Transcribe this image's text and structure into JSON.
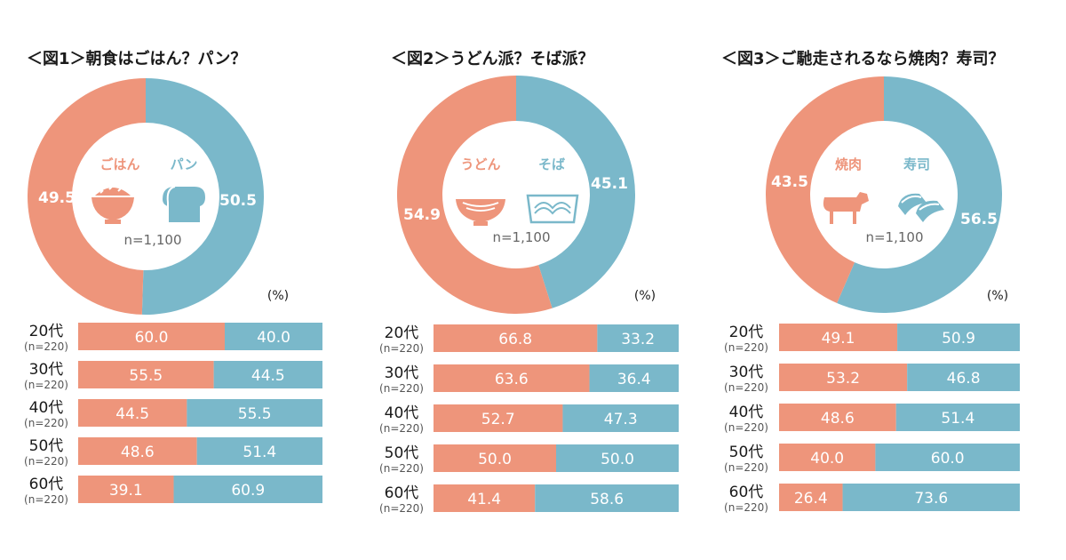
{
  "colors": {
    "left": "#ee957b",
    "right": "#7ab8ca",
    "label": "#ee957b",
    "n_text": "#666666"
  },
  "charts": [
    {
      "title": "＜図1＞朝食はごはん？パン？",
      "left_label": "ごはん",
      "right_label": "パン",
      "left_icon": "rice-bowl-icon",
      "right_icon": "bread-icon",
      "n": "n=1,100",
      "unit": "(%)",
      "left_value_label": "49.5",
      "right_value_label": "50.5"
    },
    {
      "title": "＜図2＞うどん派？そば派？",
      "left_label": "うどん",
      "right_label": "そば",
      "left_icon": "udon-bowl-icon",
      "right_icon": "soba-tray-icon",
      "n": "n=1,100",
      "unit": "(%)",
      "left_value_label": "54.9",
      "right_value_label": "45.1"
    },
    {
      "title": "＜図3＞ご馳走されるなら焼肉？寿司？",
      "left_label": "焼肉",
      "right_label": "寿司",
      "left_icon": "cow-icon",
      "right_icon": "sushi-icon",
      "n": "n=1,100",
      "unit": "(%)",
      "left_value_label": "43.5",
      "right_value_label": "56.5"
    }
  ],
  "chart_data": [
    {
      "type": "pie",
      "title": "＜図1＞朝食はごはん？パン？",
      "categories": [
        "ごはん",
        "パン"
      ],
      "values": [
        49.5,
        50.5
      ]
    },
    {
      "type": "bar",
      "stacked": true,
      "orientation": "horizontal",
      "categories": [
        "20代",
        "30代",
        "40代",
        "50代",
        "60代"
      ],
      "category_notes": [
        "(n=220)",
        "(n=220)",
        "(n=220)",
        "(n=220)",
        "(n=220)"
      ],
      "series": [
        {
          "name": "ごはん",
          "values": [
            60.0,
            55.5,
            44.5,
            48.6,
            39.1
          ],
          "labels": [
            "60.0",
            "55.5",
            "44.5",
            "48.6",
            "39.1"
          ]
        },
        {
          "name": "パン",
          "values": [
            40.0,
            44.5,
            55.5,
            51.4,
            60.9
          ],
          "labels": [
            "40.0",
            "44.5",
            "55.5",
            "51.4",
            "60.9"
          ]
        }
      ]
    },
    {
      "type": "pie",
      "title": "＜図2＞うどん派？そば派？",
      "categories": [
        "うどん",
        "そば"
      ],
      "values": [
        54.9,
        45.1
      ]
    },
    {
      "type": "bar",
      "stacked": true,
      "orientation": "horizontal",
      "categories": [
        "20代",
        "30代",
        "40代",
        "50代",
        "60代"
      ],
      "category_notes": [
        "(n=220)",
        "(n=220)",
        "(n=220)",
        "(n=220)",
        "(n=220)"
      ],
      "series": [
        {
          "name": "うどん",
          "values": [
            66.8,
            63.6,
            52.7,
            50.0,
            41.4
          ],
          "labels": [
            "66.8",
            "63.6",
            "52.7",
            "50.0",
            "41.4"
          ]
        },
        {
          "name": "そば",
          "values": [
            33.2,
            36.4,
            47.3,
            50.0,
            58.6
          ],
          "labels": [
            "33.2",
            "36.4",
            "47.3",
            "50.0",
            "58.6"
          ]
        }
      ]
    },
    {
      "type": "pie",
      "title": "＜図3＞ご馳走されるなら焼肉？寿司？",
      "categories": [
        "焼肉",
        "寿司"
      ],
      "values": [
        43.5,
        56.5
      ]
    },
    {
      "type": "bar",
      "stacked": true,
      "orientation": "horizontal",
      "categories": [
        "20代",
        "30代",
        "40代",
        "50代",
        "60代"
      ],
      "category_notes": [
        "(n=220)",
        "(n=220)",
        "(n=220)",
        "(n=220)",
        "(n=220)"
      ],
      "series": [
        {
          "name": "焼肉",
          "values": [
            49.1,
            53.2,
            48.6,
            40.0,
            26.4
          ],
          "labels": [
            "49.1",
            "53.2",
            "48.6",
            "40.0",
            "26.4"
          ]
        },
        {
          "name": "寿司",
          "values": [
            50.9,
            46.8,
            51.4,
            60.0,
            73.6
          ],
          "labels": [
            "50.9",
            "46.8",
            "51.4",
            "60.0",
            "73.6"
          ]
        }
      ]
    }
  ]
}
